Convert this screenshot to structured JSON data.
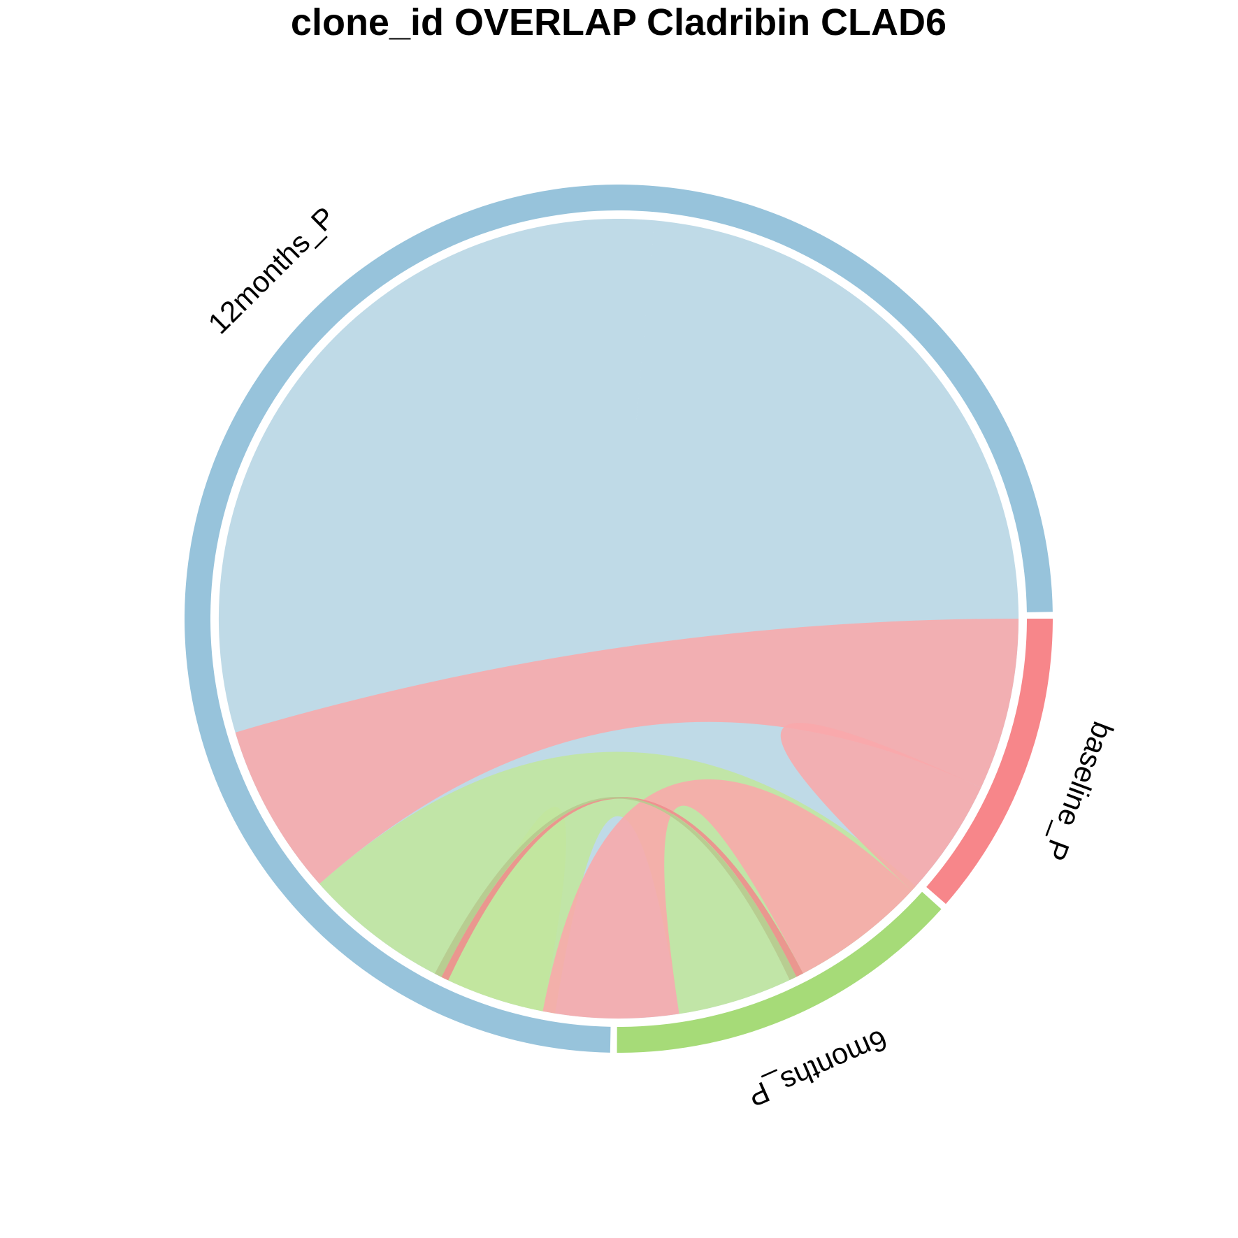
{
  "chart_data": {
    "type": "chord",
    "title": "clone_id OVERLAP Cladribin CLAD6",
    "sectors": [
      {
        "name": "baseline_P",
        "color": "#F7868A",
        "total": 11.5
      },
      {
        "name": "6months_P",
        "color": "#A6DB78",
        "total": 13.5
      },
      {
        "name": "12months_P",
        "color": "#97C3DB",
        "total": 75.0
      }
    ],
    "links": [
      {
        "from": "12months_P",
        "to": "12months_P",
        "value": 51.5,
        "color": "#B6D5E4"
      },
      {
        "from": "12months_P",
        "to": "6months_P",
        "value": 11.0,
        "color": "#C2E69E"
      },
      {
        "from": "baseline_P",
        "to": "12months_P",
        "value": 7.0,
        "color": "#F9A9AB"
      },
      {
        "from": "baseline_P",
        "to": "baseline_P",
        "value": 2.5,
        "color": "#F9A9AB"
      },
      {
        "from": "baseline_P",
        "to": "6months_P",
        "value": 5.5,
        "color": "#F9A9AB"
      },
      {
        "from": "6months_P",
        "to": "6months_P",
        "value": 2.0,
        "color": "#C2E69E"
      },
      {
        "from": "baseline_P",
        "to": "6months_P",
        "value": 0.3,
        "color": "#EF8C8C"
      },
      {
        "from": "6months_P",
        "to": "baseline_P",
        "value": 0.3,
        "color": "#B6C98E"
      }
    ]
  }
}
